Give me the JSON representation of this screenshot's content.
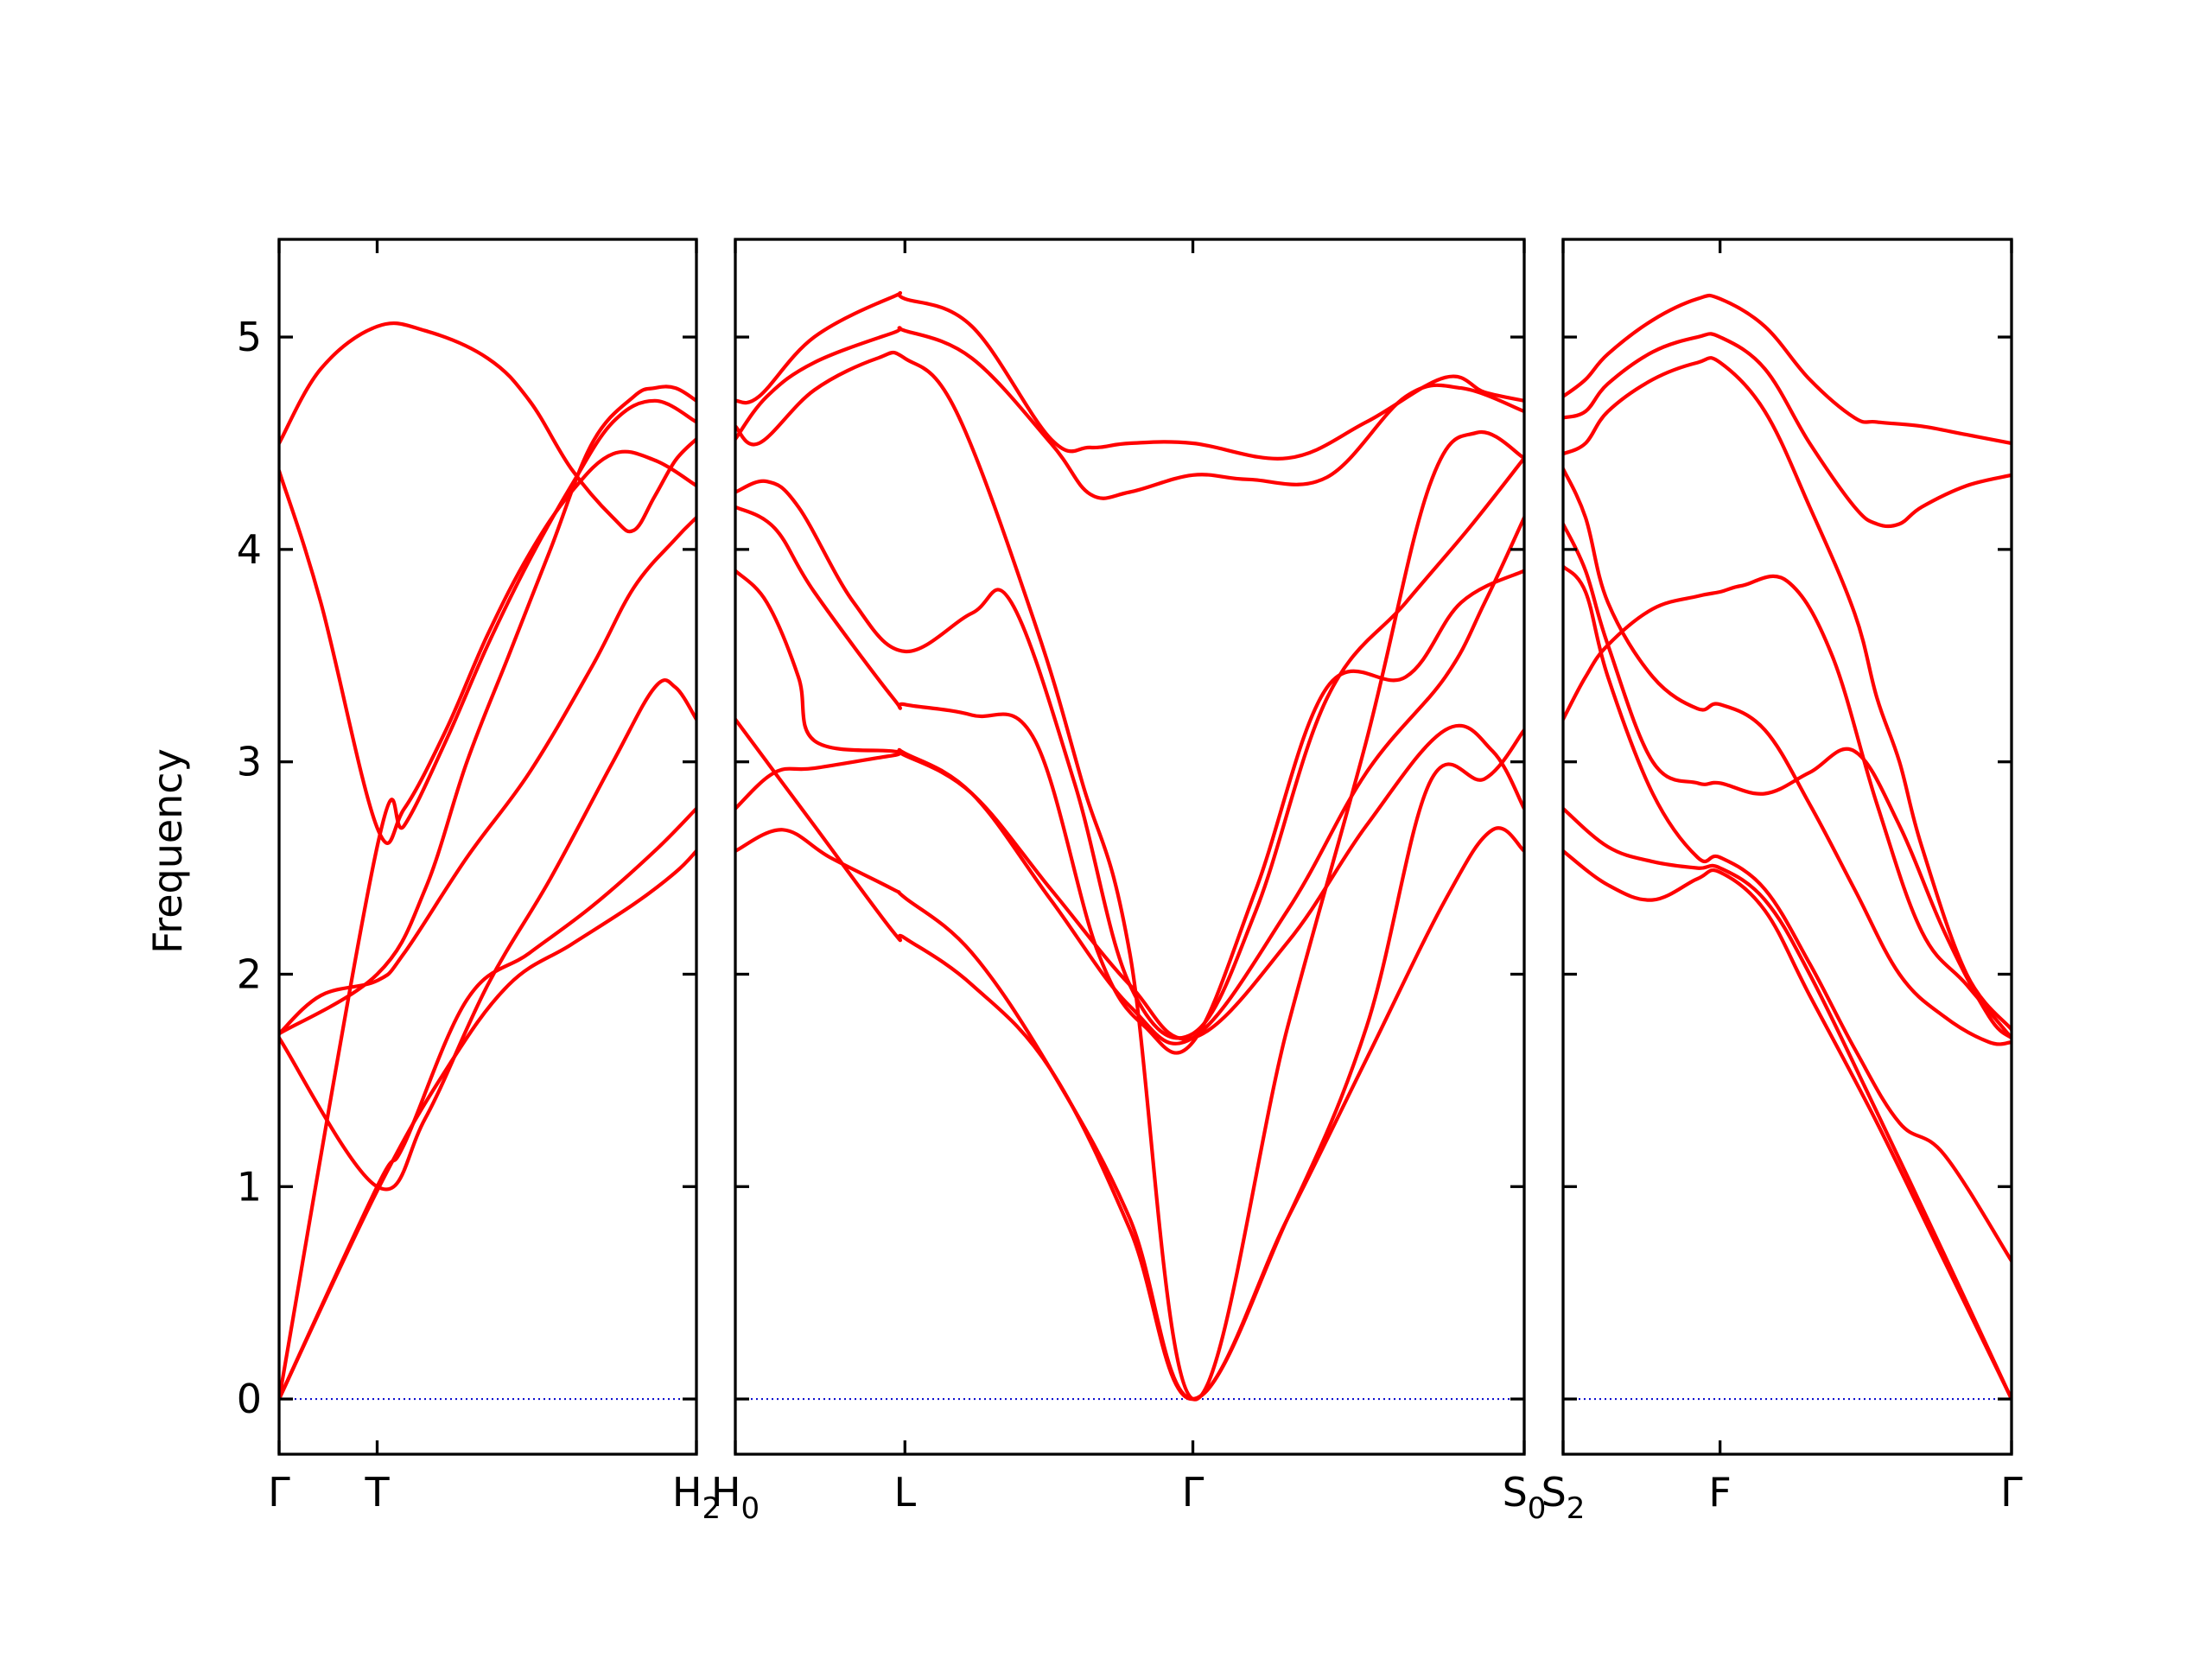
{
  "chart_data": {
    "type": "line",
    "title": "",
    "xlabel": "",
    "ylabel": "Frequency",
    "ylim": [
      -0.26,
      5.46
    ],
    "yticks": [
      "0",
      "1",
      "2",
      "3",
      "4",
      "5"
    ],
    "grid": false,
    "band_color": "#ff0000",
    "zero_line_color": "#0000cc",
    "axis_color": "#000000",
    "segments": [
      {
        "xlim": [
          0,
          1
        ],
        "ticks": [
          {
            "pos": 0.0,
            "label": "Γ"
          },
          {
            "pos": 0.235,
            "label": "T"
          },
          {
            "pos": 1.0,
            "label": "H",
            "sub": "2"
          }
        ],
        "bands": [
          {
            "x": [
              0,
              0.235,
              0.4,
              0.55,
              0.7,
              0.85,
              0.95,
              1
            ],
            "y": [
              0,
              0.98,
              1.55,
              1.95,
              2.14,
              2.33,
              2.48,
              2.58
            ]
          },
          {
            "x": [
              0,
              0.235,
              0.3,
              0.45,
              0.6,
              0.75,
              0.9,
              1
            ],
            "y": [
              0,
              1.0,
              1.2,
              1.88,
              2.1,
              2.32,
              2.58,
              2.78
            ]
          },
          {
            "x": [
              0,
              0.235,
              0.35,
              0.5,
              0.65,
              0.8,
              0.9,
              0.95,
              1
            ],
            "y": [
              1.7,
              1.0,
              1.32,
              1.95,
              2.45,
              3.0,
              3.35,
              3.35,
              3.2
            ]
          },
          {
            "x": [
              0,
              0.1,
              0.235,
              0.3,
              0.45,
              0.6,
              0.75,
              0.85,
              0.95,
              1
            ],
            "y": [
              1.72,
              1.9,
              1.97,
              2.1,
              2.55,
              2.95,
              3.45,
              3.82,
              4.05,
              4.15
            ]
          },
          {
            "x": [
              0,
              0.235,
              0.3,
              0.4,
              0.5,
              0.6,
              0.7,
              0.8,
              0.9,
              1
            ],
            "y": [
              0,
              2.6,
              2.7,
              3.1,
              3.55,
              3.95,
              4.3,
              4.6,
              4.7,
              4.6
            ]
          },
          {
            "x": [
              0,
              0.1,
              0.235,
              0.3,
              0.4,
              0.5,
              0.6,
              0.7,
              0.8,
              0.9,
              1
            ],
            "y": [
              4.37,
              3.75,
              2.69,
              2.78,
              3.15,
              3.6,
              3.98,
              4.27,
              4.45,
              4.42,
              4.3
            ]
          },
          {
            "x": [
              0,
              0.1,
              0.235,
              0.35,
              0.5,
              0.6,
              0.7,
              0.8,
              0.85,
              0.9,
              0.95,
              1
            ],
            "y": [
              4.5,
              4.85,
              5.05,
              5.03,
              4.9,
              4.7,
              4.38,
              4.15,
              4.09,
              4.25,
              4.42,
              4.52
            ]
          },
          {
            "x": [
              0,
              0.235,
              0.35,
              0.45,
              0.55,
              0.65,
              0.75,
              0.85,
              0.9,
              0.95,
              1
            ],
            "y": [
              1.72,
              2.0,
              2.4,
              3.0,
              3.5,
              4.0,
              4.5,
              4.72,
              4.76,
              4.76,
              4.7
            ]
          }
        ]
      },
      {
        "xlim": [
          0,
          1
        ],
        "ticks": [
          {
            "pos": 0.0,
            "label": "H",
            "sub": "0"
          },
          {
            "pos": 0.215,
            "label": "L"
          },
          {
            "pos": 0.58,
            "label": "Γ"
          },
          {
            "pos": 1.0,
            "label": "S",
            "sub": "0"
          }
        ],
        "bands": [
          {
            "x": [
              0,
              0.06,
              0.12,
              0.2,
              0.215,
              0.3,
              0.4,
              0.5,
              0.58,
              0.7,
              0.8,
              0.9,
              0.96,
              1
            ],
            "y": [
              2.58,
              2.68,
              2.55,
              2.4,
              2.36,
              2.1,
              1.55,
              0.85,
              0,
              0.85,
              1.6,
              2.35,
              2.68,
              2.58
            ]
          },
          {
            "x": [
              0,
              0.05,
              0.1,
              0.2,
              0.215,
              0.3,
              0.4,
              0.5,
              0.58,
              0.7,
              0.8,
              0.9,
              0.96,
              1
            ],
            "y": [
              2.78,
              2.95,
              2.97,
              3.03,
              3.03,
              2.85,
              2.4,
              1.95,
              1.7,
              2.15,
              2.7,
              3.15,
              3.05,
              2.78
            ]
          },
          {
            "x": [
              0,
              0.05,
              0.1,
              0.2,
              0.215,
              0.3,
              0.4,
              0.5,
              0.58,
              0.7,
              0.8,
              0.88,
              0.95,
              1
            ],
            "y": [
              3.2,
              2.95,
              2.7,
              2.2,
              2.17,
              1.95,
              1.55,
              0.8,
              0,
              0.85,
              1.75,
              2.9,
              2.92,
              3.15
            ]
          },
          {
            "x": [
              0,
              0.04,
              0.08,
              0.1,
              0.2,
              0.215,
              0.3,
              0.4,
              0.5,
              0.58,
              0.7,
              0.8,
              0.9,
              0.95,
              1
            ],
            "y": [
              3.9,
              3.75,
              3.4,
              3.1,
              3.05,
              3.04,
              2.85,
              2.35,
              1.85,
              1.7,
              2.3,
              2.95,
              3.4,
              3.75,
              4.15
            ]
          },
          {
            "x": [
              0,
              0.05,
              0.1,
              0.2,
              0.215,
              0.3,
              0.38,
              0.46,
              0.52,
              0.58,
              0.66,
              0.75,
              0.85,
              0.92,
              1
            ],
            "y": [
              4.2,
              4.1,
              3.8,
              3.3,
              3.27,
              3.22,
              3.1,
              2.1,
              1.75,
              1.68,
              2.4,
              3.35,
              3.4,
              3.75,
              3.9
            ]
          },
          {
            "x": [
              0,
              0.04,
              0.08,
              0.15,
              0.215,
              0.3,
              0.35,
              0.43,
              0.5,
              0.58,
              0.66,
              0.75,
              0.85,
              0.93,
              1
            ],
            "y": [
              4.27,
              4.32,
              4.2,
              3.75,
              3.52,
              3.7,
              3.75,
              2.9,
              1.95,
              1.72,
              2.3,
              3.3,
              3.75,
              4.1,
              4.43
            ]
          },
          {
            "x": [
              0,
              0.03,
              0.1,
              0.18,
              0.215,
              0.28,
              0.38,
              0.44,
              0.5,
              0.58,
              0.7,
              0.8,
              0.88,
              0.94,
              1
            ],
            "y": [
              4.58,
              4.5,
              4.75,
              4.9,
              4.9,
              4.65,
              3.65,
              2.9,
              2.1,
              0,
              1.75,
              3.1,
              4.3,
              4.55,
              4.43
            ]
          },
          {
            "x": [
              0,
              0.04,
              0.1,
              0.2,
              0.215,
              0.3,
              0.4,
              0.45,
              0.5,
              0.58,
              0.65,
              0.75,
              0.85,
              0.92,
              1
            ],
            "y": [
              4.52,
              4.72,
              4.88,
              5.02,
              5.03,
              4.9,
              4.5,
              4.26,
              4.27,
              4.35,
              4.33,
              4.34,
              4.72,
              4.76,
              4.65
            ]
          },
          {
            "x": [
              0,
              0.03,
              0.1,
              0.2,
              0.215,
              0.3,
              0.4,
              0.45,
              0.5,
              0.58,
              0.7,
              0.8,
              0.9,
              0.95,
              1
            ],
            "y": [
              4.7,
              4.72,
              5.0,
              5.19,
              5.18,
              5.05,
              4.52,
              4.48,
              4.5,
              4.5,
              4.43,
              4.6,
              4.81,
              4.74,
              4.7
            ]
          }
        ]
      },
      {
        "xlim": [
          0,
          1
        ],
        "ticks": [
          {
            "pos": 0.0,
            "label": "S",
            "sub": "2"
          },
          {
            "pos": 0.35,
            "label": "F"
          },
          {
            "pos": 1.0,
            "label": "Γ"
          }
        ],
        "bands": [
          {
            "x": [
              0,
              0.1,
              0.2,
              0.3,
              0.35,
              0.45,
              0.55,
              0.7,
              0.85,
              1
            ],
            "y": [
              2.58,
              2.42,
              2.35,
              2.45,
              2.48,
              2.3,
              1.9,
              1.3,
              0.65,
              0
            ]
          },
          {
            "x": [
              0,
              0.1,
              0.2,
              0.3,
              0.35,
              0.45,
              0.55,
              0.7,
              0.85,
              1
            ],
            "y": [
              2.78,
              2.6,
              2.53,
              2.5,
              2.5,
              2.35,
              2.0,
              1.35,
              0.68,
              0
            ]
          },
          {
            "x": [
              0,
              0.05,
              0.1,
              0.2,
              0.3,
              0.35,
              0.4,
              0.5,
              0.6,
              0.7,
              0.8,
              0.9,
              1
            ],
            "y": [
              3.2,
              3.4,
              3.55,
              3.72,
              3.78,
              3.8,
              3.83,
              3.85,
              3.5,
              2.8,
              2.2,
              1.95,
              1.7
            ]
          },
          {
            "x": [
              0,
              0.05,
              0.1,
              0.2,
              0.3,
              0.35,
              0.45,
              0.55,
              0.65,
              0.75,
              0.85,
              1
            ],
            "y": [
              3.92,
              3.8,
              3.4,
              2.85,
              2.55,
              2.55,
              2.4,
              2.05,
              1.65,
              1.3,
              1.15,
              0.65
            ]
          },
          {
            "x": [
              0,
              0.05,
              0.1,
              0.2,
              0.3,
              0.35,
              0.45,
              0.55,
              0.65,
              0.75,
              0.85,
              0.95,
              1
            ],
            "y": [
              4.12,
              3.9,
              3.55,
              3.0,
              2.9,
              2.9,
              2.85,
              2.95,
              3.05,
              2.7,
              2.2,
              1.8,
              1.7
            ]
          },
          {
            "x": [
              0,
              0.05,
              0.1,
              0.2,
              0.3,
              0.35,
              0.45,
              0.55,
              0.65,
              0.75,
              0.85,
              0.95,
              1
            ],
            "y": [
              4.38,
              4.15,
              3.75,
              3.4,
              3.25,
              3.27,
              3.15,
              2.8,
              2.4,
              2.0,
              1.8,
              1.68,
              1.68
            ]
          },
          {
            "x": [
              0,
              0.05,
              0.1,
              0.2,
              0.3,
              0.35,
              0.45,
              0.55,
              0.65,
              0.7,
              0.75,
              0.8,
              0.9,
              1
            ],
            "y": [
              4.45,
              4.5,
              4.65,
              4.8,
              4.88,
              4.88,
              4.65,
              4.2,
              3.7,
              3.3,
              3.0,
              2.6,
              2.0,
              1.74
            ]
          },
          {
            "x": [
              0,
              0.05,
              0.1,
              0.2,
              0.3,
              0.35,
              0.45,
              0.55,
              0.65,
              0.7,
              0.75,
              0.8,
              0.9,
              1
            ],
            "y": [
              4.62,
              4.65,
              4.78,
              4.93,
              5.0,
              5.0,
              4.85,
              4.5,
              4.2,
              4.12,
              4.12,
              4.2,
              4.3,
              4.35
            ]
          },
          {
            "x": [
              0,
              0.05,
              0.1,
              0.2,
              0.3,
              0.35,
              0.45,
              0.55,
              0.65,
              0.7,
              0.8,
              0.9,
              1
            ],
            "y": [
              4.72,
              4.8,
              4.92,
              5.08,
              5.18,
              5.18,
              5.05,
              4.8,
              4.62,
              4.6,
              4.58,
              4.54,
              4.5
            ]
          }
        ]
      }
    ]
  }
}
